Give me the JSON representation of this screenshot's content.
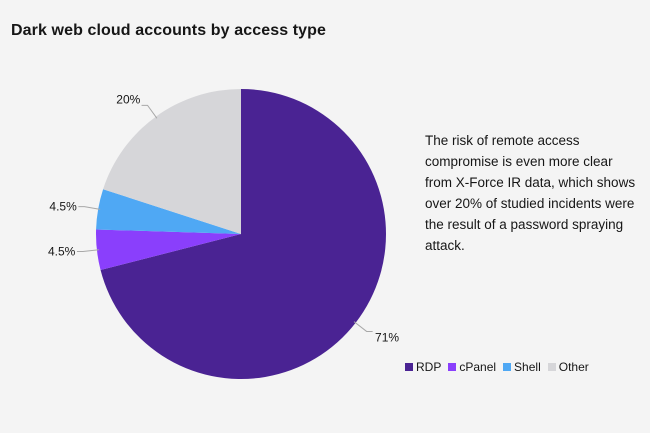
{
  "chart_data": {
    "type": "pie",
    "title": "Dark web cloud accounts by access type",
    "slices": [
      {
        "label": "RDP",
        "value": 71,
        "display": "71%",
        "color": "#4a2393"
      },
      {
        "label": "cPanel",
        "value": 4.5,
        "display": "4.5%",
        "color": "#8a3ffc"
      },
      {
        "label": "Shell",
        "value": 4.5,
        "display": "4.5%",
        "color": "#4fa8f4"
      },
      {
        "label": "Other",
        "value": 20,
        "display": "20%",
        "color": "#d6d6d9"
      }
    ],
    "legend_position": "bottom-right",
    "start": "12 o'clock",
    "direction": "clockwise"
  },
  "note": "The risk of remote access compromise is even more clear from X-Force IR data, which shows over 20% of studied incidents were the result of a password spraying attack."
}
